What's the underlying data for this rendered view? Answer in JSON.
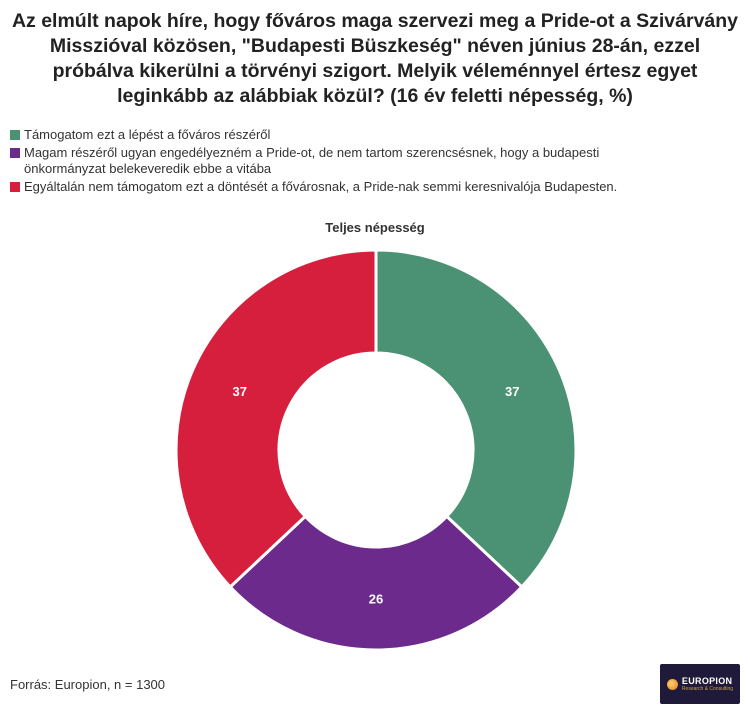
{
  "title": "Az elmúlt napok híre, hogy főváros maga szervezi meg a Pride-ot a Szivárvány Misszióval közösen, \"Budapesti Büszkeség\" néven június 28-án, ezzel próbálva kikerülni a törvényi szigort. Melyik véleménnyel értesz egyet leginkább az alábbiak közül? (16 év feletti népesség, %)",
  "chart_data": {
    "type": "pie",
    "title": "Teljes népesség",
    "donut": true,
    "legend_position": "top-left",
    "series": [
      {
        "name": "Támogatom ezt a lépést a főváros részéről",
        "value": 37,
        "color": "#4a9273"
      },
      {
        "name": "Magam részéről ugyan engedélyezném a Pride-ot, de nem tartom szerencsésnek, hogy a budapesti önkormányzat belekeveredik ebbe a vitába",
        "value": 26,
        "color": "#6b2a8c"
      },
      {
        "name": "Egyáltalán nem támogatom ezt a döntését a fővárosnak, a Pride-nak semmi keresnivalója Budapesten.",
        "value": 37,
        "color": "#d61f3c"
      }
    ]
  },
  "source": "Forrás: Europion, n = 1300",
  "logo": {
    "name": "EUROPION",
    "sub": "Research & Consulting"
  }
}
